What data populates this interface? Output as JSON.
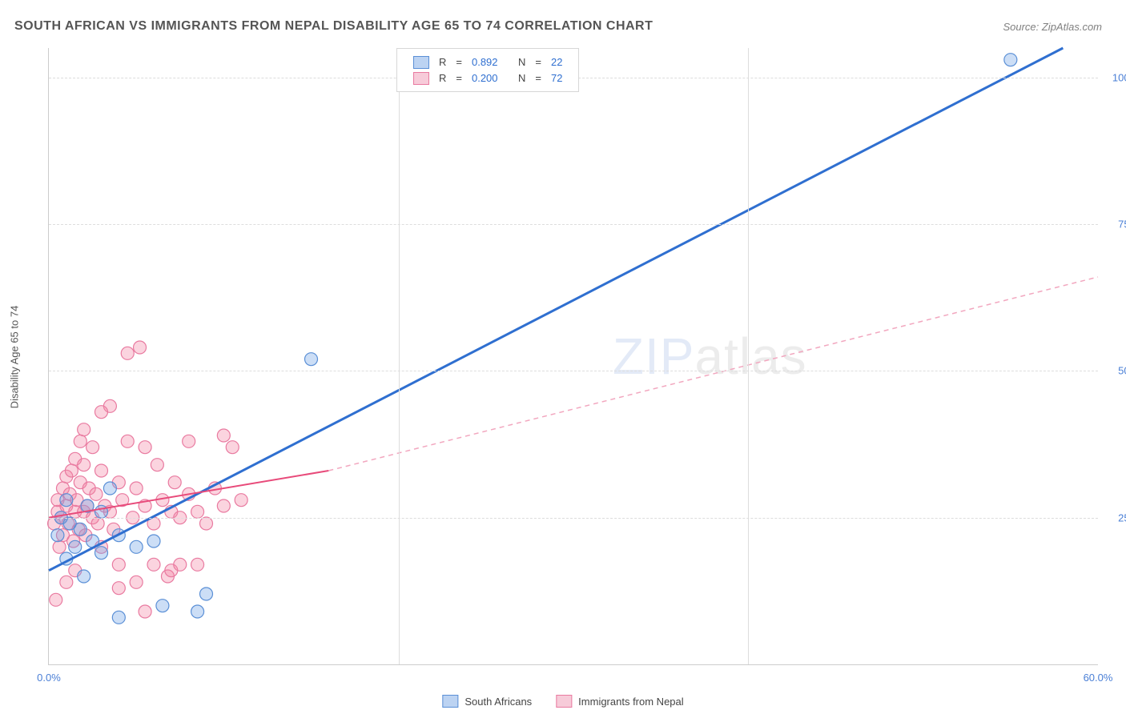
{
  "title": "SOUTH AFRICAN VS IMMIGRANTS FROM NEPAL DISABILITY AGE 65 TO 74 CORRELATION CHART",
  "source": "Source: ZipAtlas.com",
  "ylabel": "Disability Age 65 to 74",
  "watermark_a": "ZIP",
  "watermark_b": "atlas",
  "chart": {
    "type": "scatter",
    "xlim": [
      0,
      60
    ],
    "ylim": [
      0,
      105
    ],
    "xticks": [
      0,
      60
    ],
    "xtick_labels": [
      "0.0%",
      "60.0%"
    ],
    "xtick_minor": [
      20,
      40
    ],
    "yticks": [
      25,
      50,
      75,
      100
    ],
    "ytick_labels": [
      "25.0%",
      "50.0%",
      "75.0%",
      "100.0%"
    ],
    "grid_color": "#dddddd",
    "background": "#ffffff",
    "axis_color": "#cccccc"
  },
  "series": {
    "blue": {
      "label": "South Africans",
      "color_fill": "rgba(108,160,230,0.35)",
      "color_stroke": "#5a8fd6",
      "swatch_fill": "#bcd3f2",
      "swatch_border": "#5a8fd6",
      "R": "0.892",
      "N": "22",
      "marker_r": 8,
      "line": {
        "x1": 0,
        "y1": 16,
        "x2": 58,
        "y2": 105,
        "stroke": "#2f6fd0",
        "width": 3,
        "dash": ""
      },
      "points": [
        [
          0.5,
          22
        ],
        [
          0.7,
          25
        ],
        [
          1.0,
          28
        ],
        [
          1.2,
          24
        ],
        [
          1.5,
          20
        ],
        [
          1.8,
          23
        ],
        [
          2.2,
          27
        ],
        [
          2.5,
          21
        ],
        [
          3.0,
          19
        ],
        [
          3.0,
          26
        ],
        [
          3.5,
          30
        ],
        [
          4.0,
          22
        ],
        [
          5.0,
          20
        ],
        [
          6.0,
          21
        ],
        [
          6.5,
          10
        ],
        [
          8.5,
          9
        ],
        [
          9.0,
          12
        ],
        [
          2.0,
          15
        ],
        [
          4.0,
          8
        ],
        [
          15.0,
          52
        ],
        [
          55.0,
          103
        ],
        [
          1.0,
          18
        ]
      ]
    },
    "pink": {
      "label": "Immigrants from Nepal",
      "color_fill": "rgba(244,132,164,0.35)",
      "color_stroke": "#e97aa0",
      "swatch_fill": "#f7cbd9",
      "swatch_border": "#e97aa0",
      "R": "0.200",
      "N": "72",
      "marker_r": 8,
      "line_solid": {
        "x1": 0,
        "y1": 25,
        "x2": 16,
        "y2": 33,
        "stroke": "#e84a7a",
        "width": 2
      },
      "line_dash": {
        "x1": 16,
        "y1": 33,
        "x2": 60,
        "y2": 66,
        "stroke": "#f2a7bf",
        "width": 1.5,
        "dash": "6 5"
      },
      "points": [
        [
          0.3,
          24
        ],
        [
          0.5,
          26
        ],
        [
          0.5,
          28
        ],
        [
          0.7,
          25
        ],
        [
          0.8,
          30
        ],
        [
          0.8,
          22
        ],
        [
          1.0,
          27
        ],
        [
          1.0,
          32
        ],
        [
          1.1,
          24
        ],
        [
          1.2,
          29
        ],
        [
          1.3,
          33
        ],
        [
          1.4,
          21
        ],
        [
          1.5,
          35
        ],
        [
          1.5,
          26
        ],
        [
          1.6,
          28
        ],
        [
          1.7,
          23
        ],
        [
          1.8,
          31
        ],
        [
          1.8,
          38
        ],
        [
          2.0,
          26
        ],
        [
          2.0,
          34
        ],
        [
          2.1,
          22
        ],
        [
          2.2,
          27
        ],
        [
          2.3,
          30
        ],
        [
          2.5,
          25
        ],
        [
          2.5,
          37
        ],
        [
          2.7,
          29
        ],
        [
          2.8,
          24
        ],
        [
          3.0,
          33
        ],
        [
          3.0,
          20
        ],
        [
          3.2,
          27
        ],
        [
          3.5,
          26
        ],
        [
          3.5,
          44
        ],
        [
          3.7,
          23
        ],
        [
          4.0,
          31
        ],
        [
          4.0,
          17
        ],
        [
          4.2,
          28
        ],
        [
          4.5,
          53
        ],
        [
          4.5,
          38
        ],
        [
          4.8,
          25
        ],
        [
          5.0,
          30
        ],
        [
          5.0,
          14
        ],
        [
          5.2,
          54
        ],
        [
          5.5,
          27
        ],
        [
          5.5,
          37
        ],
        [
          6.0,
          24
        ],
        [
          6.0,
          17
        ],
        [
          6.2,
          34
        ],
        [
          6.5,
          28
        ],
        [
          6.8,
          15
        ],
        [
          7.0,
          26
        ],
        [
          7.0,
          16
        ],
        [
          7.2,
          31
        ],
        [
          7.5,
          25
        ],
        [
          8.0,
          29
        ],
        [
          8.0,
          38
        ],
        [
          8.5,
          26
        ],
        [
          8.5,
          17
        ],
        [
          9.0,
          24
        ],
        [
          9.5,
          30
        ],
        [
          10.0,
          27
        ],
        [
          10.0,
          39
        ],
        [
          10.5,
          37
        ],
        [
          11.0,
          28
        ],
        [
          0.4,
          11
        ],
        [
          0.6,
          20
        ],
        [
          1.0,
          14
        ],
        [
          4.0,
          13
        ],
        [
          5.5,
          9
        ],
        [
          7.5,
          17
        ],
        [
          3.0,
          43
        ],
        [
          2.0,
          40
        ],
        [
          1.5,
          16
        ]
      ]
    }
  },
  "stats_legend": {
    "label_color": "#444444",
    "value_color": "#2f6fd0",
    "R_label": "R",
    "N_label": "N",
    "eq": "="
  }
}
